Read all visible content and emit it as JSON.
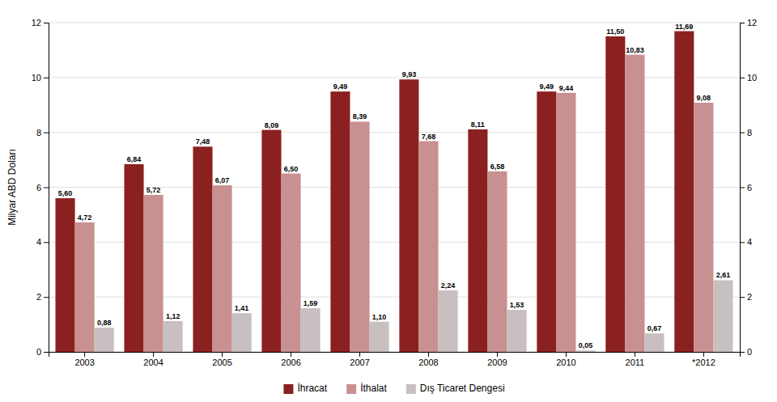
{
  "chart_data": {
    "type": "bar",
    "categories": [
      "2003",
      "2004",
      "2005",
      "2006",
      "2007",
      "2008",
      "2009",
      "2010",
      "2011",
      "*2012"
    ],
    "series": [
      {
        "name": "İhracat",
        "color": "#8B2020",
        "values": [
          5.6,
          6.84,
          7.48,
          8.09,
          9.49,
          9.93,
          8.11,
          9.49,
          11.5,
          11.69
        ],
        "value_labels": [
          "5,60",
          "6,84",
          "7,48",
          "8,09",
          "9,49",
          "9,93",
          "8,11",
          "9,49",
          "11,50",
          "11,69"
        ]
      },
      {
        "name": "İthalat",
        "color": "#C89090",
        "values": [
          4.72,
          5.72,
          6.07,
          6.5,
          8.39,
          7.68,
          6.58,
          9.44,
          10.83,
          9.08
        ],
        "value_labels": [
          "4,72",
          "5,72",
          "6,07",
          "6,50",
          "8,39",
          "7,68",
          "6,58",
          "9,44",
          "10,83",
          "9,08"
        ]
      },
      {
        "name": "Dış Ticaret Dengesi",
        "color": "#C8C0C0",
        "values": [
          0.88,
          1.12,
          1.41,
          1.59,
          1.1,
          2.24,
          1.53,
          0.05,
          0.67,
          2.61
        ],
        "value_labels": [
          "0,88",
          "1,12",
          "1,41",
          "1,59",
          "1,10",
          "2,24",
          "1,53",
          "0,05",
          "0,67",
          "2,61"
        ]
      }
    ],
    "ylabel": "Milyar ABD Doları",
    "ylim": [
      0,
      12
    ],
    "yticks": [
      0,
      2,
      4,
      6,
      8,
      10,
      12
    ],
    "y2lim": [
      0,
      12
    ],
    "y2ticks": [
      0,
      2,
      4,
      6,
      8,
      10,
      12
    ],
    "grid": true,
    "legend": "bottom",
    "data_labels": true
  }
}
